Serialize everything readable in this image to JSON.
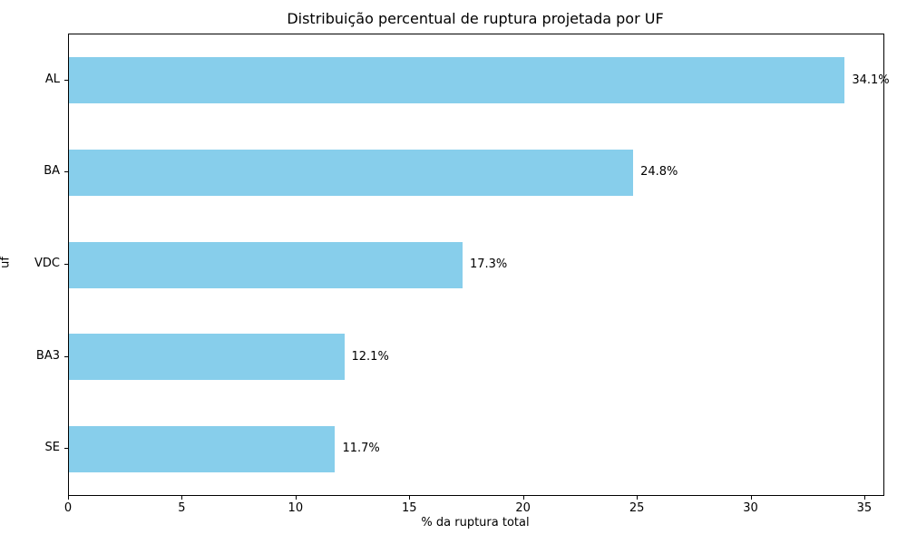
{
  "chart_data": {
    "type": "bar",
    "orientation": "horizontal",
    "title": "Distribuição percentual de ruptura projetada por UF",
    "xlabel": "% da ruptura total",
    "ylabel": "uf",
    "categories": [
      "AL",
      "BA",
      "VDC",
      "BA3",
      "SE"
    ],
    "values": [
      34.1,
      24.8,
      17.3,
      12.1,
      11.7
    ],
    "value_labels": [
      "34.1%",
      "24.8%",
      "17.3%",
      "12.1%",
      "11.7%"
    ],
    "xticks": [
      0,
      5,
      10,
      15,
      20,
      25,
      30,
      35
    ],
    "xtick_labels": [
      "0",
      "5",
      "10",
      "15",
      "20",
      "25",
      "30",
      "35"
    ],
    "xlim": [
      0,
      35.8
    ],
    "grid": false,
    "legend": null,
    "bar_color": "#87CEEB",
    "axis_color": "#000000",
    "background_color": "#ffffff"
  }
}
